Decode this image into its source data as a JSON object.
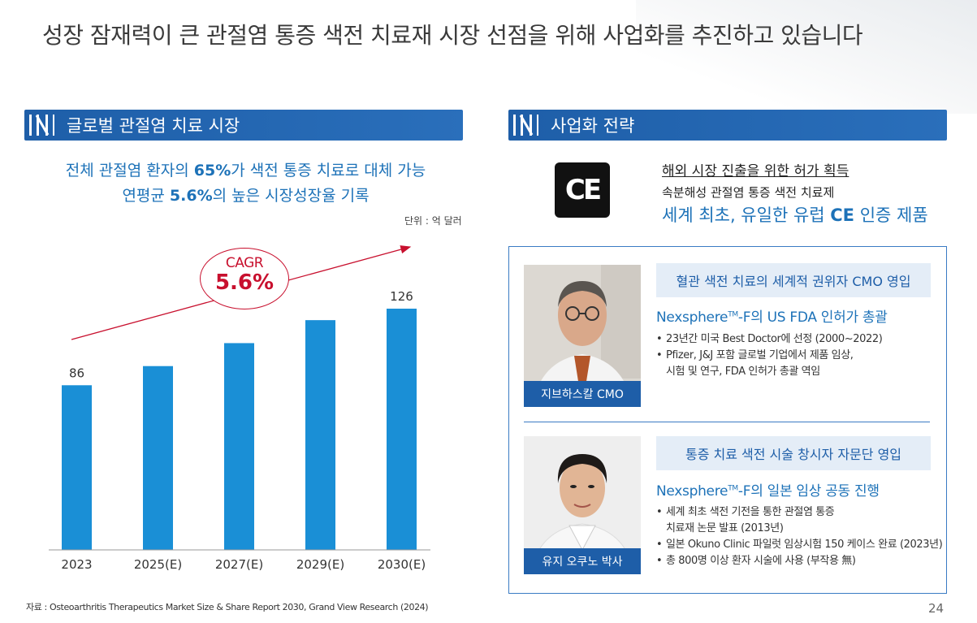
{
  "page": {
    "title": "성장 잠재력이 큰 관절염 통증 색전 치료재 시장 선점을 위해 사업화를 추진하고 있습니다",
    "page_number": "24",
    "source": "자료 : Osteoarthritis Therapeutics Market Size & Share Report 2030, Grand View Research (2024)"
  },
  "left": {
    "section_title": "글로벌 관절염 치료 시장",
    "headline1_a": "전체 관절염 환자의 ",
    "headline1_b": "65%",
    "headline1_c": "가 색전 통증 치료로 대체 가능",
    "headline2_a": "연평균 ",
    "headline2_b": "5.6%",
    "headline2_c": "의 높은 시장성장율 기록",
    "unit": "단위 : 억 달러",
    "cagr_label": "CAGR",
    "cagr_value": "5.6%"
  },
  "chart_data": {
    "type": "bar",
    "categories": [
      "2023",
      "2025(E)",
      "2027(E)",
      "2029(E)",
      "2030(E)"
    ],
    "values": [
      86,
      96,
      108,
      120,
      126
    ],
    "data_labels": [
      "86",
      "",
      "",
      "",
      "126"
    ],
    "ylim": [
      0,
      140
    ],
    "bar_color": "#1a8fd6",
    "trend_color": "#c8102e",
    "grid": false
  },
  "right": {
    "section_title": "사업화 전략",
    "ce_logo_text": "CE",
    "ce_title": "해외 시장 진출을 위한 허가 획득",
    "ce_sub": "속분해성 관절염 통증 색전 치료제",
    "ce_main_a": "세계 최초, 유일한 유럽 ",
    "ce_main_b": "CE",
    "ce_main_c": " 인증 제품",
    "person1": {
      "name": "지브하스칼 CMO",
      "role": "혈관 색전 치료의 세계적 권위자 CMO 영입",
      "highlight_a": "Nexsphere",
      "highlight_tm": "TM",
      "highlight_b": "-F의 US FDA 인허가 총괄",
      "bullets": [
        "23년간 미국 Best Doctor에 선정 (2000~2022)",
        "Pfizer, J&J 포함 글로벌 기업에서 제품 임상,",
        "시험 및 연구, FDA 인허가 총괄 역임"
      ]
    },
    "person2": {
      "name": "유지 오쿠노 박사",
      "role": "통증 치료 색전 시술 창시자 자문단 영입",
      "highlight_a": "Nexsphere",
      "highlight_tm": "TM",
      "highlight_b": "-F의 일본 임상 공동 진행",
      "bullets": [
        "세계 최초 색전 기전을 통한 관절염 통증",
        "치료재 논문 발표 (2013년)",
        "일본 Okuno Clinic 파일럿 임상시험 150 케이스 완료 (2023년)",
        "총 800명 이상 환자 시술에 사용 (부작용 無)"
      ]
    }
  },
  "colors": {
    "brand_blue": "#1e5ea8",
    "accent_blue": "#1d72b8",
    "accent_red": "#c8102e"
  }
}
